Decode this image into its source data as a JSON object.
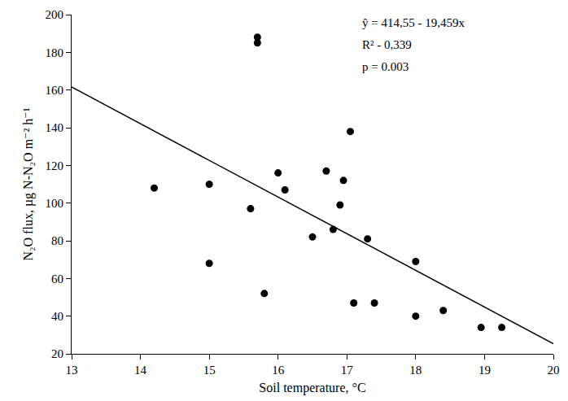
{
  "chart_data": {
    "type": "scatter",
    "x_label": "Soil temperature, °C",
    "y_label": "N₂O flux, µg N-N₂O m⁻² h⁻¹",
    "annotations": [
      "ŷ = 414,55 - 19,459x",
      "R² - 0,339",
      "p = 0.003"
    ],
    "series": [
      {
        "type": "scatter",
        "color": "#000000",
        "marker": "circle",
        "x": [
          14.2,
          15.0,
          15.0,
          15.6,
          15.7,
          15.7,
          15.8,
          16.0,
          16.1,
          16.5,
          16.7,
          16.8,
          16.9,
          16.95,
          17.05,
          17.1,
          17.3,
          17.4,
          18.0,
          18.0,
          18.4,
          18.95,
          19.25
        ],
        "values": [
          108,
          110,
          68,
          97,
          188,
          185,
          52,
          116,
          107,
          82,
          117,
          86,
          99,
          112,
          138,
          47,
          81,
          47,
          69,
          40,
          43,
          34,
          34
        ]
      },
      {
        "type": "line",
        "color": "#000000",
        "line_style": "solid",
        "x": [
          13,
          20
        ],
        "values": [
          161.58,
          25.37
        ]
      }
    ],
    "xlim": [
      13,
      20
    ],
    "xticks": [
      13,
      14,
      15,
      16,
      17,
      18,
      19,
      20
    ],
    "ylim": [
      20,
      200
    ],
    "yticks": [
      20,
      40,
      60,
      80,
      100,
      120,
      140,
      160,
      180,
      200
    ],
    "grid": false
  }
}
